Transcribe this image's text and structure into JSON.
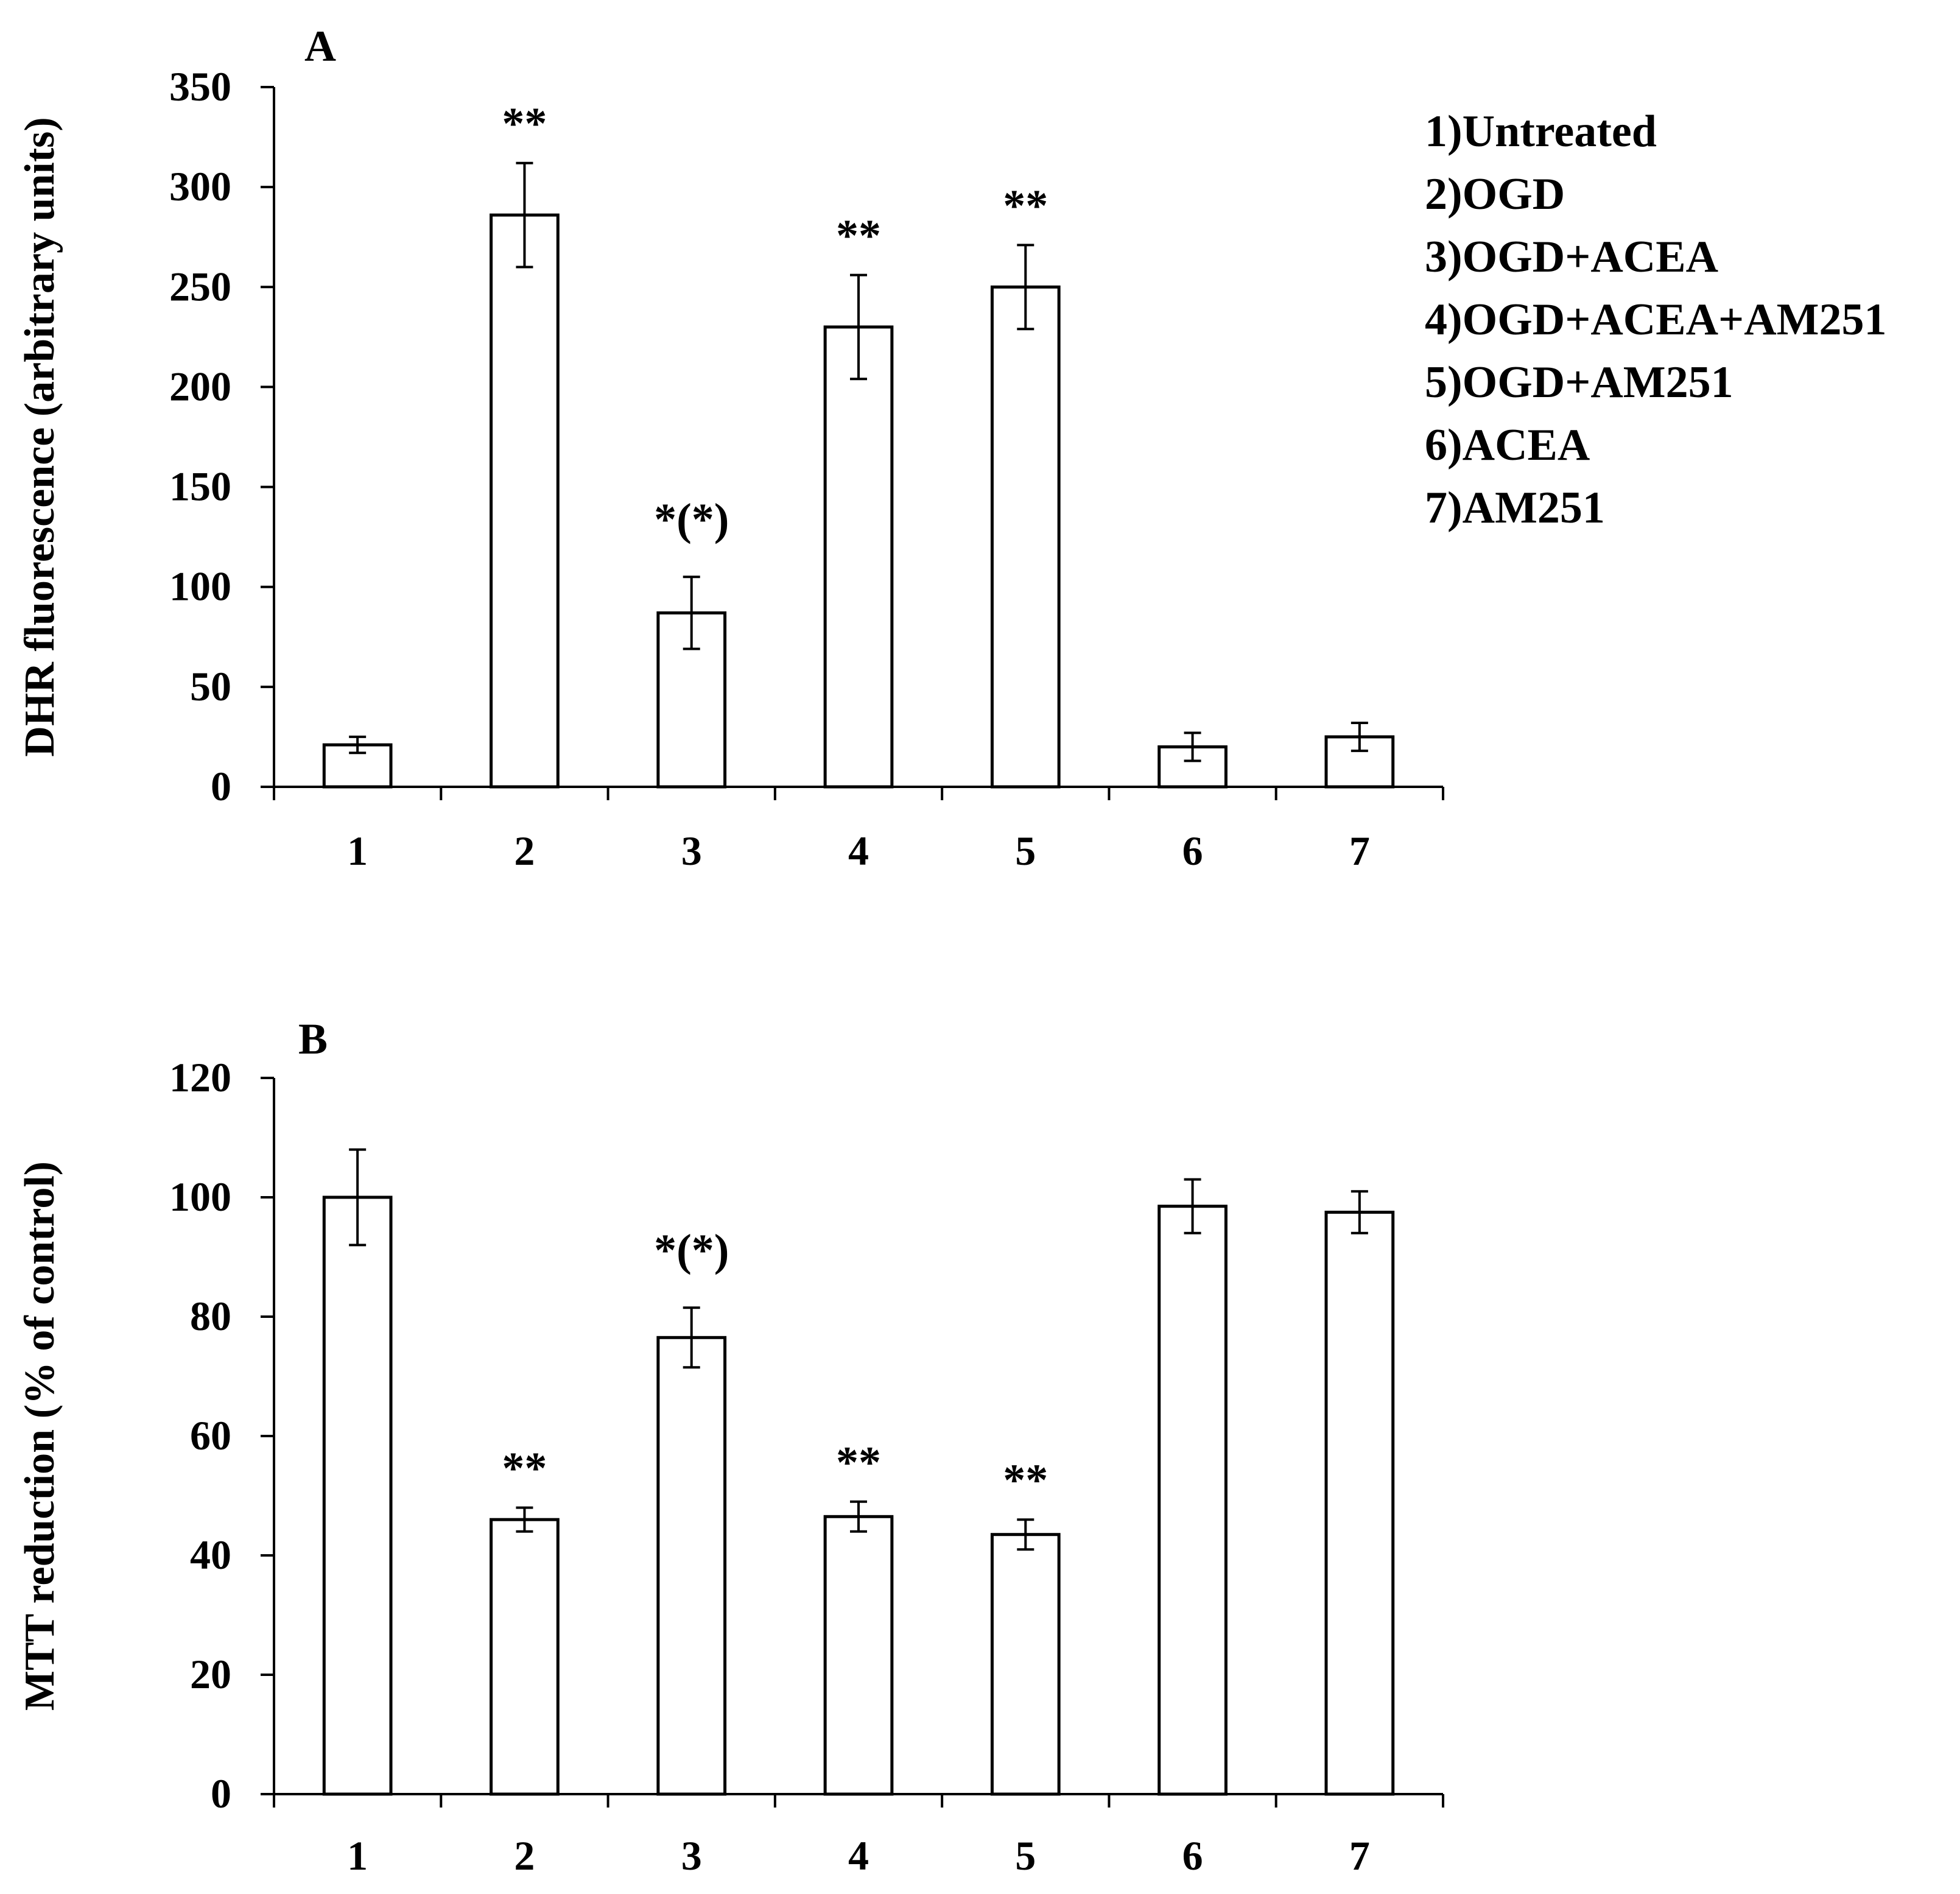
{
  "chart_data": [
    {
      "type": "bar",
      "panel_label": "A",
      "categories": [
        "1",
        "2",
        "3",
        "4",
        "5",
        "6",
        "7"
      ],
      "values": [
        21,
        286,
        87,
        230,
        250,
        20,
        25
      ],
      "errors": [
        4,
        26,
        18,
        26,
        21,
        7,
        7
      ],
      "annotations": [
        "",
        "**",
        "*(*)",
        "**",
        "**",
        "",
        ""
      ],
      "ylabel": "DHR fluorescence (arbitrary  units)",
      "xlabel": "",
      "ylim": [
        0,
        350
      ],
      "yticks": [
        0,
        50,
        100,
        150,
        200,
        250,
        300,
        350
      ]
    },
    {
      "type": "bar",
      "panel_label": "B",
      "categories": [
        "1",
        "2",
        "3",
        "4",
        "5",
        "6",
        "7"
      ],
      "values": [
        100,
        46,
        76.5,
        46.5,
        43.5,
        98.5,
        97.5
      ],
      "errors": [
        8,
        2,
        5,
        2.5,
        2.5,
        4.5,
        3.5
      ],
      "annotations": [
        "",
        "**",
        "*(*)",
        "**",
        "**",
        "",
        ""
      ],
      "ylabel": "MTT reduction  (% of control)",
      "xlabel": "",
      "ylim": [
        0,
        120
      ],
      "yticks": [
        0,
        20,
        40,
        60,
        80,
        100,
        120
      ]
    }
  ],
  "legend": [
    "1)Untreated",
    "2)OGD",
    "3)OGD+ACEA",
    "4)OGD+ACEA+AM251",
    "5)OGD+AM251",
    "6)ACEA",
    "7)AM251"
  ]
}
